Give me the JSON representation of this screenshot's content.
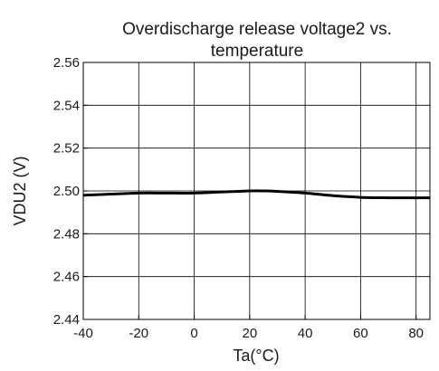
{
  "chart_data": {
    "type": "line",
    "title_lines": [
      "Overdischarge release voltage2 vs.",
      "temperature"
    ],
    "xlabel": "Ta(°C)",
    "ylabel": "VDU2 (V)",
    "xlim": [
      -40,
      85
    ],
    "ylim": [
      2.44,
      2.56
    ],
    "x_ticks": [
      -40,
      -20,
      0,
      20,
      40,
      60,
      80
    ],
    "x_tick_labels": [
      "-40",
      "-20",
      "0",
      "20",
      "40",
      "60",
      "80"
    ],
    "y_ticks": [
      2.44,
      2.46,
      2.48,
      2.5,
      2.52,
      2.54,
      2.56
    ],
    "y_tick_labels": [
      "2.44",
      "2.46",
      "2.48",
      "2.50",
      "2.52",
      "2.54",
      "2.56"
    ],
    "grid": true,
    "line_color": "#000000",
    "series": [
      {
        "x": [
          -40,
          -30,
          -20,
          -10,
          0,
          10,
          20,
          25,
          30,
          40,
          50,
          60,
          70,
          85
        ],
        "values": [
          2.498,
          2.4985,
          2.499,
          2.499,
          2.499,
          2.4995,
          2.5,
          2.5,
          2.4998,
          2.499,
          2.4978,
          2.497,
          2.4968,
          2.4968
        ]
      }
    ]
  }
}
